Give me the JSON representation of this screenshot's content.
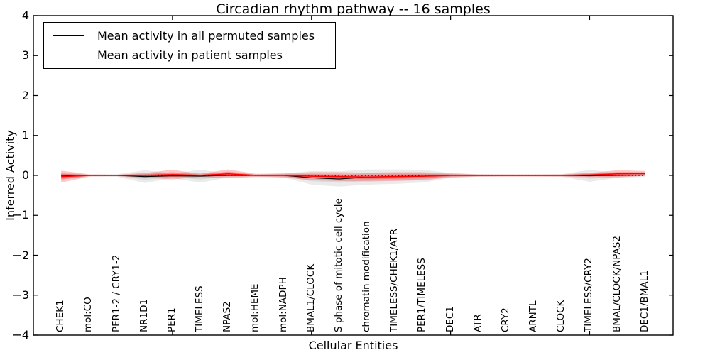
{
  "title": "Circadian rhythm pathway -- 16 samples",
  "axes": {
    "x_label": "Cellular Entities",
    "y_label": "Inferred Activity",
    "y_tick_labels": [
      "4",
      "3",
      "2",
      "1",
      "0",
      "−1",
      "−2",
      "−3",
      "−4"
    ],
    "y_tick_values": [
      4,
      3,
      2,
      1,
      0,
      -1,
      -2,
      -3,
      -4
    ],
    "x_unlabeled_tick_values": [
      5,
      10,
      15,
      20
    ]
  },
  "legend": {
    "items": [
      {
        "label": "Mean activity in all permuted samples",
        "color": "#000000"
      },
      {
        "label": "Mean activity in patient samples",
        "color": "#ff0000"
      }
    ]
  },
  "colors": {
    "permuted_line": "#000000",
    "patient_line": "#ff0000",
    "permuted_band": "#808080",
    "patient_band": "#ff0000",
    "frame": "#000000"
  },
  "chart_data": {
    "type": "line",
    "title": "Circadian rhythm pathway -- 16 samples",
    "xlabel": "Cellular Entities",
    "ylabel": "Inferred Activity",
    "ylim": [
      -4,
      4
    ],
    "xlim": [
      0,
      23
    ],
    "grid": false,
    "legend_position": "upper left",
    "categories": [
      "CHEK1",
      "mol:CO",
      "PER1-2 / CRY1-2",
      "NR1D1",
      "PER1",
      "TIMELESS",
      "NPAS2",
      "mol:HEME",
      "mol:NADPH",
      "BMAL1/CLOCK",
      "S phase of mitotic cell cycle",
      "chromatin modification",
      "TIMELESS/CHEK1/ATR",
      "PER1/TIMELESS",
      "DEC1",
      "ATR",
      "CRY2",
      "ARNTL",
      "CLOCK",
      "TIMELESS/CRY2",
      "BMAL/CLOCK/NPAS2",
      "DEC1/BMAL1"
    ],
    "series": [
      {
        "name": "Mean activity in all permuted samples",
        "values": [
          0.0,
          0.0,
          0.0,
          -0.03,
          -0.01,
          -0.02,
          0.0,
          0.0,
          0.0,
          -0.06,
          -0.09,
          -0.04,
          -0.03,
          -0.02,
          0.0,
          0.0,
          0.0,
          0.0,
          0.0,
          -0.01,
          0.0,
          0.01
        ],
        "band_halfwidth": [
          0.08,
          0.02,
          0.03,
          0.16,
          0.06,
          0.16,
          0.05,
          0.03,
          0.05,
          0.17,
          0.19,
          0.19,
          0.18,
          0.16,
          0.06,
          0.03,
          0.02,
          0.02,
          0.03,
          0.15,
          0.06,
          0.05
        ]
      },
      {
        "name": "Mean activity in patient samples",
        "values": [
          -0.03,
          0.0,
          0.0,
          0.0,
          0.02,
          0.0,
          0.04,
          0.0,
          0.0,
          -0.02,
          -0.03,
          -0.04,
          -0.03,
          -0.02,
          0.0,
          0.0,
          0.0,
          0.0,
          0.0,
          0.01,
          0.04,
          0.05
        ],
        "band_halfwidth": [
          0.15,
          0.03,
          0.02,
          0.06,
          0.12,
          0.04,
          0.11,
          0.04,
          0.05,
          0.1,
          0.11,
          0.11,
          0.11,
          0.1,
          0.05,
          0.03,
          0.03,
          0.03,
          0.03,
          0.05,
          0.09,
          0.06
        ]
      }
    ],
    "zero_reference_line": 0
  }
}
